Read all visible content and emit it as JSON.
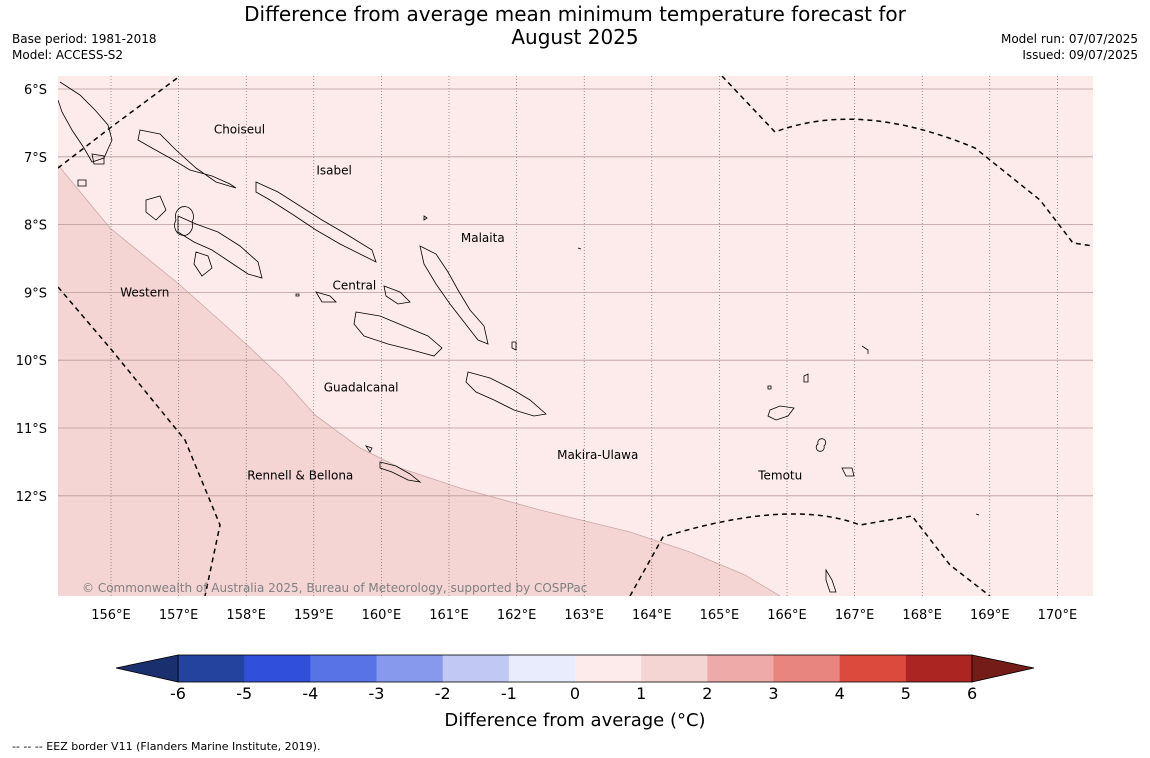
{
  "title_line1": "Difference from average mean minimum temperature forecast for",
  "title_line2": "August 2025",
  "meta_left": {
    "base_period": "Base period: 1981-2018",
    "model": "Model: ACCESS-S2"
  },
  "meta_right": {
    "model_run": "Model run: 07/07/2025",
    "issued": "Issued: 09/07/2025"
  },
  "map": {
    "lon_range": [
      155.2,
      170.5
    ],
    "lat_range": [
      -13.7,
      -5.8
    ],
    "lat_ticks": [
      {
        "value": -6,
        "label": "6°S"
      },
      {
        "value": -7,
        "label": "7°S"
      },
      {
        "value": -8,
        "label": "8°S"
      },
      {
        "value": -9,
        "label": "9°S"
      },
      {
        "value": -10,
        "label": "10°S"
      },
      {
        "value": -11,
        "label": "11°S"
      },
      {
        "value": -12,
        "label": "12°S"
      }
    ],
    "lon_ticks": [
      {
        "value": 156,
        "label": "156°E"
      },
      {
        "value": 157,
        "label": "157°E"
      },
      {
        "value": 158,
        "label": "158°E"
      },
      {
        "value": 159,
        "label": "159°E"
      },
      {
        "value": 160,
        "label": "160°E"
      },
      {
        "value": 161,
        "label": "161°E"
      },
      {
        "value": 162,
        "label": "162°E"
      },
      {
        "value": 163,
        "label": "163°E"
      },
      {
        "value": 164,
        "label": "164°E"
      },
      {
        "value": 165,
        "label": "165°E"
      },
      {
        "value": 166,
        "label": "166°E"
      },
      {
        "value": 167,
        "label": "167°E"
      },
      {
        "value": 168,
        "label": "168°E"
      },
      {
        "value": 169,
        "label": "169°E"
      },
      {
        "value": 170,
        "label": "170°E"
      }
    ],
    "regions": [
      {
        "name": "Choiseul",
        "lon": 157.9,
        "lat": -6.6
      },
      {
        "name": "Isabel",
        "lon": 159.3,
        "lat": -7.2
      },
      {
        "name": "Malaita",
        "lon": 161.5,
        "lat": -8.2
      },
      {
        "name": "Western",
        "lon": 156.5,
        "lat": -9.0
      },
      {
        "name": "Central",
        "lon": 159.6,
        "lat": -8.9
      },
      {
        "name": "Guadalcanal",
        "lon": 159.7,
        "lat": -10.4
      },
      {
        "name": "Makira-Ulawa",
        "lon": 163.2,
        "lat": -11.4
      },
      {
        "name": "Temotu",
        "lon": 165.9,
        "lat": -11.7
      },
      {
        "name": "Rennell & Bellona",
        "lon": 158.8,
        "lat": -11.7
      }
    ],
    "category_colors": {
      "zero_to_one": "#fcebea",
      "one_to_two": "#f5d5d3"
    },
    "copyright": "© Commonwealth of Australia 2025, Bureau of Meteorology, supported by COSPPac"
  },
  "colorbar": {
    "ticks": [
      "-6",
      "-5",
      "-4",
      "-3",
      "-2",
      "-1",
      "0",
      "1",
      "2",
      "3",
      "4",
      "5",
      "6"
    ],
    "colors": [
      "#24439e",
      "#3050dc",
      "#5873e6",
      "#8799ec",
      "#c2c8f4",
      "#e9ecfc",
      "#fcebea",
      "#f5d5d3",
      "#eeaaa8",
      "#e8857f",
      "#dc4a3d",
      "#ab2622"
    ],
    "under_color": "#1a2f6e",
    "over_color": "#731c18",
    "label": "Difference from average (°C)"
  },
  "footnote": "--  --  -- EEZ border V11 (Flanders Marine Institute, 2019)."
}
